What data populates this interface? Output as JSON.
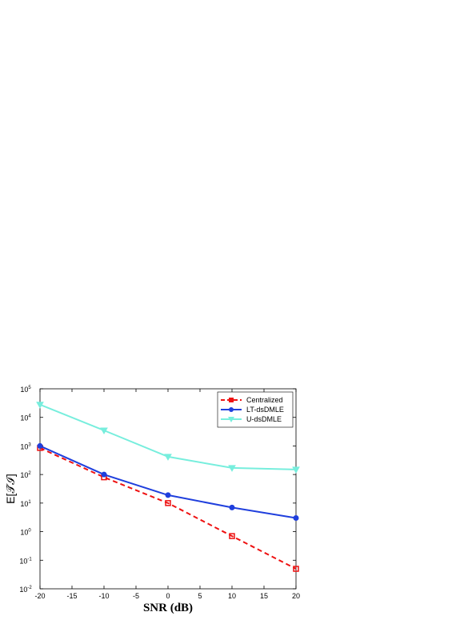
{
  "chart_data": {
    "type": "line",
    "x_label": "SNR (dB)",
    "y_label": "E[𝒯̃ℐ]",
    "x": [
      -20,
      -10,
      0,
      10,
      20
    ],
    "series": [
      {
        "name": "Centralized",
        "color": "#ee1111",
        "dash": true,
        "marker": "square",
        "values": [
          850,
          80,
          10,
          0.7,
          0.05
        ]
      },
      {
        "name": "LT-dsDMLE",
        "color": "#1f3fdd",
        "dash": false,
        "marker": "circle",
        "values": [
          1000,
          100,
          19,
          7,
          3
        ]
      },
      {
        "name": "U-dsDMLE",
        "color": "#77eedd",
        "dash": false,
        "marker": "triangle-down",
        "values": [
          28000,
          3500,
          420,
          170,
          150
        ]
      }
    ],
    "xlim": [
      -20,
      20
    ],
    "xticks": [
      -20,
      -15,
      -10,
      -5,
      0,
      5,
      10,
      15,
      20
    ],
    "ylim": [
      0.01,
      100000
    ],
    "log_y": true,
    "yticks": [
      {
        "value": 0.01,
        "label": "10",
        "exponent": "-2"
      },
      {
        "value": 0.1,
        "label": "10",
        "exponent": "-1"
      },
      {
        "value": 1,
        "label": "10",
        "exponent": "0"
      },
      {
        "value": 10,
        "label": "10",
        "exponent": "1"
      },
      {
        "value": 100,
        "label": "10",
        "exponent": "2"
      },
      {
        "value": 1000,
        "label": "10",
        "exponent": "3"
      },
      {
        "value": 10000,
        "label": "10",
        "exponent": "4"
      },
      {
        "value": 100000,
        "label": "10",
        "exponent": "5"
      }
    ],
    "legend": "top-right"
  }
}
